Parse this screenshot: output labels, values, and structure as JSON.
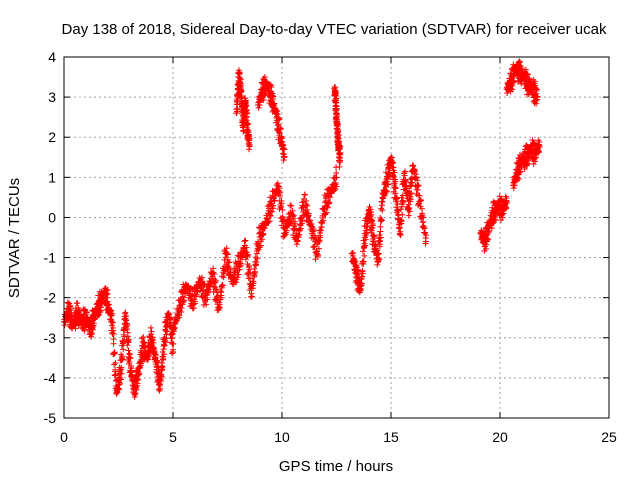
{
  "chart_data": {
    "type": "scatter",
    "title": "Day 138 of 2018, Sidereal Day-to-day VTEC variation (SDTVAR) for receiver ucak",
    "xlabel": "GPS time / hours",
    "ylabel": "SDTVAR / TECUs",
    "xlim": [
      0,
      25
    ],
    "ylim": [
      -5,
      4
    ],
    "x_ticks": [
      0,
      5,
      10,
      15,
      20,
      25
    ],
    "y_ticks": [
      -5,
      -4,
      -3,
      -2,
      -1,
      0,
      1,
      2,
      3,
      4
    ],
    "x_tick_labels": [
      "0",
      "5",
      "10",
      "15",
      "20",
      "25"
    ],
    "y_tick_labels": [
      "-5",
      "-4",
      "-3",
      "-2",
      "-1",
      "0",
      "1",
      "2",
      "3",
      "4"
    ],
    "grid": true,
    "marker": "plus",
    "color": "#ff0000",
    "series": [
      {
        "name": "ucak",
        "segments": [
          {
            "x": [
              0.0,
              0.2,
              0.4,
              0.6,
              0.8,
              1.0,
              1.2,
              1.4,
              1.6,
              1.8,
              2.0
            ],
            "y": [
              -2.6,
              -2.3,
              -2.7,
              -2.4,
              -2.6,
              -2.5,
              -2.8,
              -2.4,
              -2.2,
              -1.9,
              -2.1
            ]
          },
          {
            "x": [
              2.0,
              2.2,
              2.4,
              2.6,
              2.8,
              3.0,
              3.2,
              3.4,
              3.6,
              3.8,
              4.0,
              4.2,
              4.4,
              4.6,
              4.8,
              5.0
            ],
            "y": [
              -2.2,
              -2.6,
              -4.4,
              -3.8,
              -2.4,
              -3.6,
              -4.3,
              -3.9,
              -3.2,
              -3.5,
              -3.0,
              -3.6,
              -4.2,
              -3.0,
              -2.4,
              -3.3
            ]
          },
          {
            "x": [
              5.0,
              5.3,
              5.6,
              5.9,
              6.2,
              6.5,
              6.8,
              7.1,
              7.4,
              7.7,
              8.0,
              8.3,
              8.6,
              8.9,
              9.2,
              9.5,
              9.8,
              10.1,
              10.4,
              10.7,
              11.0,
              11.3,
              11.6,
              11.9,
              12.2,
              12.5
            ],
            "y": [
              -2.8,
              -2.2,
              -1.7,
              -2.1,
              -1.6,
              -2.0,
              -1.4,
              -2.3,
              -0.9,
              -1.6,
              -1.2,
              -0.7,
              -1.9,
              -0.6,
              -0.2,
              0.3,
              0.8,
              -0.4,
              0.1,
              -0.6,
              0.4,
              -0.2,
              -0.9,
              0.2,
              0.6,
              1.0
            ]
          },
          {
            "x": [
              7.9,
              8.0,
              8.1,
              8.2,
              8.3,
              8.4,
              8.5
            ],
            "y": [
              2.6,
              3.5,
              3.2,
              2.3,
              2.9,
              2.2,
              1.8
            ]
          },
          {
            "x": [
              8.9,
              9.1,
              9.3,
              9.5,
              9.7,
              9.9,
              10.1
            ],
            "y": [
              2.8,
              3.2,
              3.3,
              3.0,
              2.6,
              2.1,
              1.5
            ]
          },
          {
            "x": [
              12.4,
              12.45,
              12.5,
              12.55,
              12.6,
              12.65
            ],
            "y": [
              3.2,
              2.9,
              2.4,
              2.0,
              1.7,
              1.5
            ]
          },
          {
            "x": [
              13.2,
              13.4,
              13.6,
              13.8,
              14.0,
              14.2,
              14.4,
              14.6,
              14.8,
              15.0,
              15.2,
              15.4,
              15.6,
              15.8,
              16.0,
              16.3,
              16.6
            ],
            "y": [
              -0.9,
              -1.4,
              -1.8,
              -0.4,
              0.2,
              -0.6,
              -1.1,
              0.5,
              0.9,
              1.5,
              0.6,
              -0.4,
              1.1,
              0.2,
              1.3,
              0.4,
              -0.6
            ]
          },
          {
            "x": [
              19.1,
              19.3,
              19.5,
              19.7,
              19.9,
              20.1,
              20.3
            ],
            "y": [
              -0.4,
              -0.6,
              -0.2,
              0.1,
              0.3,
              0.2,
              0.4
            ]
          },
          {
            "x": [
              20.6,
              20.8,
              21.0,
              21.2,
              21.4,
              21.6,
              21.8
            ],
            "y": [
              0.8,
              1.2,
              1.4,
              1.5,
              1.7,
              1.6,
              1.8
            ]
          },
          {
            "x": [
              20.3,
              20.5,
              20.7,
              20.9,
              21.1,
              21.3,
              21.5,
              21.7
            ],
            "y": [
              3.2,
              3.4,
              3.7,
              3.6,
              3.5,
              3.3,
              3.2,
              3.0
            ]
          }
        ]
      }
    ]
  }
}
